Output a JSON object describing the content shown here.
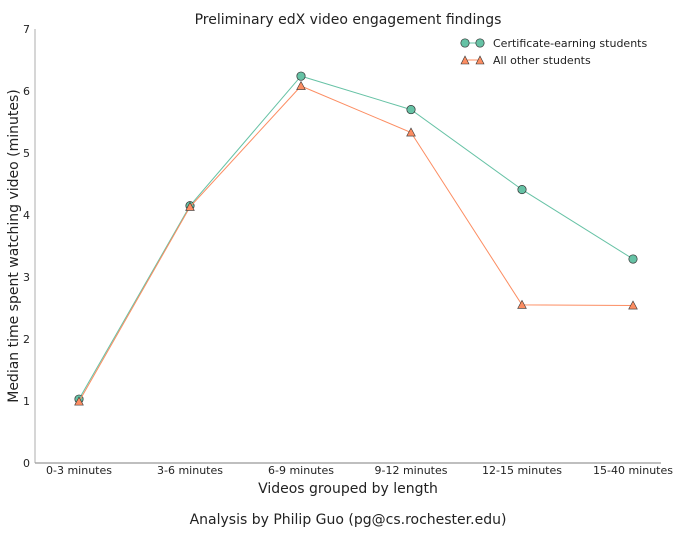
{
  "chart_data": {
    "type": "line",
    "title": "Preliminary edX video engagement findings",
    "xlabel": "Videos grouped by length",
    "ylabel": "Median time spent watching video (minutes)",
    "footer": "Analysis by Philip Guo (pg@cs.rochester.edu)",
    "categories": [
      "0-3 minutes",
      "3-6 minutes",
      "6-9 minutes",
      "9-12 minutes",
      "12-15 minutes",
      "15-40 minutes"
    ],
    "ylim": [
      0,
      7
    ],
    "yticks": [
      0,
      1,
      2,
      3,
      4,
      5,
      6,
      7
    ],
    "grid": false,
    "legend_position": "upper right",
    "series": [
      {
        "name": "Certificate-earning students",
        "marker": "circle",
        "color": "#66c2a5",
        "values": [
          1.03,
          4.15,
          6.24,
          5.7,
          4.41,
          3.29
        ]
      },
      {
        "name": "All other students",
        "marker": "triangle",
        "color": "#fc8d62",
        "values": [
          0.99,
          4.13,
          6.08,
          5.33,
          2.55,
          2.54
        ]
      }
    ]
  }
}
